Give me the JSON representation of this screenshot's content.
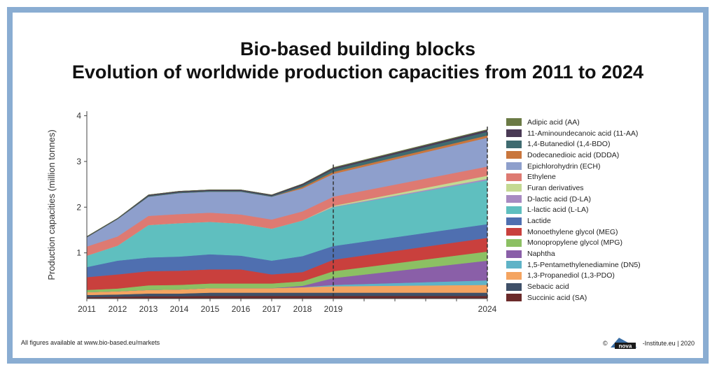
{
  "title_line1": "Bio-based building blocks",
  "title_line2": "Evolution of worldwide production capacities from 2011 to 2024",
  "footer_left": "All figures available at www.bio-based.eu/markets",
  "footer_right_prefix": "©",
  "footer_logo_text": "nova",
  "footer_right_suffix": "-Institute.eu | 2020",
  "chart_data": {
    "type": "area",
    "stacked": true,
    "ylabel": "Production capacities (million tonnes)",
    "xlabel": "",
    "x": [
      2011,
      2012,
      2013,
      2014,
      2015,
      2016,
      2017,
      2018,
      2019,
      2024
    ],
    "x_tick_labels": [
      "2011",
      "2012",
      "2013",
      "2014",
      "2015",
      "2016",
      "2017",
      "2018",
      "2019",
      "2024"
    ],
    "y_tick_labels": [
      "1",
      "2",
      "3",
      "4"
    ],
    "ylim": [
      0,
      4.1
    ],
    "dashed_verticals": [
      2019,
      2024
    ],
    "legend_position": "right",
    "series": [
      {
        "name": "Succinic acid (SA)",
        "color": "#6b2a2a",
        "values": [
          0.03,
          0.04,
          0.05,
          0.05,
          0.06,
          0.06,
          0.06,
          0.06,
          0.06,
          0.06
        ]
      },
      {
        "name": "Sebacic acid",
        "color": "#3f5068",
        "values": [
          0.05,
          0.05,
          0.06,
          0.06,
          0.07,
          0.07,
          0.07,
          0.07,
          0.07,
          0.07
        ]
      },
      {
        "name": "1,3-Propanediol (1,3-PDO)",
        "color": "#f4a460",
        "values": [
          0.06,
          0.07,
          0.08,
          0.09,
          0.1,
          0.1,
          0.1,
          0.12,
          0.14,
          0.17
        ]
      },
      {
        "name": "1,5-Pentamethylenediamine (DN5)",
        "color": "#5fb3c7",
        "values": [
          0.0,
          0.0,
          0.0,
          0.0,
          0.0,
          0.0,
          0.0,
          0.0,
          0.03,
          0.1
        ]
      },
      {
        "name": "Naphtha",
        "color": "#8a5fa8",
        "values": [
          0.0,
          0.0,
          0.0,
          0.0,
          0.0,
          0.0,
          0.0,
          0.03,
          0.15,
          0.43
        ]
      },
      {
        "name": "Monopropylene glycol (MPG)",
        "color": "#8cc063",
        "values": [
          0.05,
          0.06,
          0.1,
          0.1,
          0.1,
          0.1,
          0.1,
          0.1,
          0.15,
          0.2
        ]
      },
      {
        "name": "Monoethylene glycol (MEG)",
        "color": "#c9403d",
        "values": [
          0.28,
          0.31,
          0.31,
          0.31,
          0.31,
          0.31,
          0.2,
          0.2,
          0.25,
          0.3
        ]
      },
      {
        "name": "Lactide",
        "color": "#4f6fb0",
        "values": [
          0.22,
          0.3,
          0.3,
          0.31,
          0.33,
          0.3,
          0.3,
          0.35,
          0.3,
          0.3
        ]
      },
      {
        "name": "L-lactic acid (L-LA)",
        "color": "#5fbfbf",
        "values": [
          0.25,
          0.33,
          0.71,
          0.73,
          0.71,
          0.7,
          0.7,
          0.78,
          0.85,
          0.96
        ]
      },
      {
        "name": "D-lactic acid (D-LA)",
        "color": "#a88bc2",
        "values": [
          0.0,
          0.0,
          0.0,
          0.0,
          0.0,
          0.0,
          0.0,
          0.0,
          0.01,
          0.03
        ]
      },
      {
        "name": "Furan derivatives",
        "color": "#c4d992",
        "values": [
          0.0,
          0.0,
          0.0,
          0.0,
          0.0,
          0.0,
          0.0,
          0.0,
          0.02,
          0.07
        ]
      },
      {
        "name": "Ethylene",
        "color": "#de7a72",
        "values": [
          0.2,
          0.2,
          0.2,
          0.2,
          0.2,
          0.2,
          0.2,
          0.2,
          0.2,
          0.2
        ]
      },
      {
        "name": "Epichlorohydrin (ECH)",
        "color": "#8e9fcc",
        "values": [
          0.2,
          0.38,
          0.42,
          0.46,
          0.46,
          0.5,
          0.5,
          0.5,
          0.5,
          0.63
        ]
      },
      {
        "name": "Dodecanedioic acid (DDDA)",
        "color": "#c9763d",
        "values": [
          0.0,
          0.0,
          0.0,
          0.0,
          0.0,
          0.0,
          0.0,
          0.03,
          0.04,
          0.05
        ]
      },
      {
        "name": "1,4-Butanediol (1,4-BDO)",
        "color": "#3f6b70",
        "values": [
          0.01,
          0.01,
          0.02,
          0.02,
          0.02,
          0.02,
          0.02,
          0.04,
          0.06,
          0.08
        ]
      },
      {
        "name": "11-Aminoundecanoic acid (11-AA)",
        "color": "#4a3a55",
        "values": [
          0.01,
          0.01,
          0.02,
          0.02,
          0.02,
          0.02,
          0.02,
          0.03,
          0.03,
          0.04
        ]
      },
      {
        "name": "Adipic acid (AA)",
        "color": "#6b7a45",
        "values": [
          0.0,
          0.0,
          0.0,
          0.0,
          0.0,
          0.0,
          0.0,
          0.0,
          0.01,
          0.01
        ]
      }
    ]
  }
}
